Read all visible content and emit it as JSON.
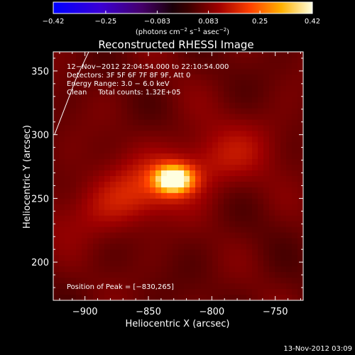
{
  "chart_data": {
    "type": "heatmap",
    "title": "Reconstructed RHESSI Image",
    "xlabel": "Heliocentric X (arcsec)",
    "ylabel": "Heliocentric Y (arcsec)",
    "xlim": [
      -925,
      -728
    ],
    "ylim": [
      170,
      365
    ],
    "x_ticks": [
      -900,
      -850,
      -800,
      -750
    ],
    "x_tick_labels": [
      "−900",
      "−850",
      "−800",
      "−750"
    ],
    "y_ticks": [
      200,
      250,
      300,
      350
    ],
    "y_tick_labels": [
      "200",
      "250",
      "300",
      "350"
    ],
    "colorbar": {
      "min": -0.42,
      "max": 0.42,
      "tick_values": [
        -0.42,
        -0.25,
        -0.083,
        0.083,
        0.25,
        0.42
      ],
      "tick_labels": [
        "−0.42",
        "−0.25",
        "−0.083",
        "0.083",
        "0.25",
        "0.42"
      ],
      "units_base": "(photons cm",
      "units_exp1": "−2",
      "units_mid1": " s",
      "units_exp2": "−1",
      "units_mid2": " asec",
      "units_exp3": "−2",
      "units_end": ")"
    },
    "annotation_lines": [
      "12−Nov−2012 22:04:54.000 to 22:10:54.000",
      "Detectors: 3F 5F 6F 7F 8F 9F, Att 0",
      "Energy Range: 3.0 − 6.0 keV",
      "Clean     Total counts: 1.32E+05"
    ],
    "peak_label": "Position of Peak = [−830,265]",
    "peak": {
      "x": -830,
      "y": 265,
      "value": 0.42
    },
    "background_level": 0.06,
    "sources": [
      {
        "x": -830,
        "y": 265,
        "sx": 10,
        "sy": 7,
        "amp": 0.39
      },
      {
        "x": -840,
        "y": 262,
        "sx": 55,
        "sy": 16,
        "amp": 0.09,
        "rot_deg": 22
      },
      {
        "x": -868,
        "y": 255,
        "sx": 30,
        "sy": 22,
        "amp": 0.035
      },
      {
        "x": -790,
        "y": 285,
        "sx": 35,
        "sy": 25,
        "amp": 0.025
      }
    ],
    "limb_line": [
      {
        "x": -924,
        "y": 300
      },
      {
        "x": -907,
        "y": 344
      },
      {
        "x": -897,
        "y": 365
      }
    ]
  },
  "footer": {
    "timestamp": "13-Nov-2012 03:09"
  },
  "colors": {
    "background": "#000000",
    "foreground": "#ffffff"
  }
}
